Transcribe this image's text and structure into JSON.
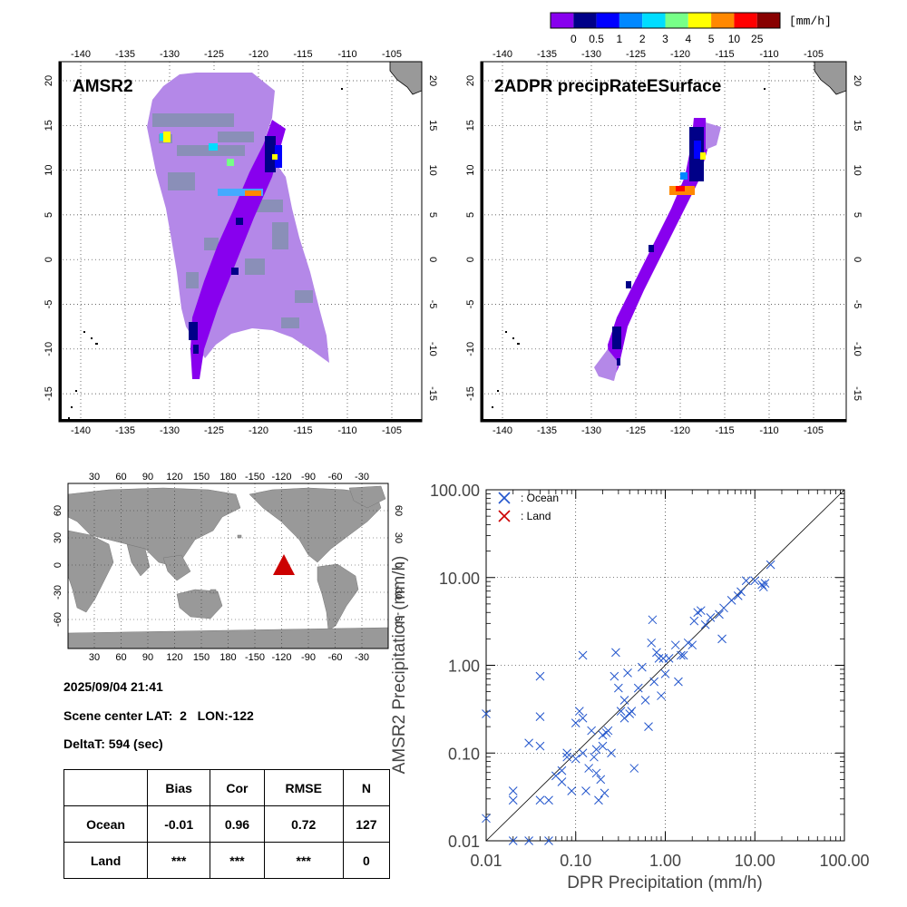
{
  "colorbar": {
    "unit": "[mm/h]",
    "ticks": [
      "0",
      "0.5",
      "1",
      "2",
      "3",
      "4",
      "5",
      "10",
      "25"
    ],
    "colors": [
      "#8800ee",
      "#000088",
      "#0000ff",
      "#0088ff",
      "#00ddff",
      "#77ff88",
      "#ffff00",
      "#ff8800",
      "#ff0000",
      "#880000"
    ]
  },
  "panels": {
    "amsr2": {
      "title": "AMSR2"
    },
    "dpr": {
      "title": "2ADPR precipRateESurface"
    },
    "lon_ticks": [
      "-140",
      "-135",
      "-130",
      "-125",
      "-120",
      "-115",
      "-110",
      "-105"
    ],
    "lat_ticks": [
      "20",
      "15",
      "10",
      "5",
      "0",
      "-5",
      "-10",
      "-15"
    ]
  },
  "world_map": {
    "lon_ticks": [
      "30",
      "60",
      "90",
      "120",
      "150",
      "180",
      "-150",
      "-120",
      "-90",
      "-60",
      "-30"
    ],
    "lat_ticks": [
      "60",
      "30",
      "0",
      "-30",
      "-60"
    ],
    "marker_color": "#cc0000"
  },
  "info": {
    "datetime": "2025/09/04 21:41",
    "scene_center": "Scene center LAT:  2   LON:-122",
    "delta_t": "DeltaT:  594 (sec)"
  },
  "stats_table": {
    "headers": [
      "Bias",
      "Cor",
      "RMSE",
      "N"
    ],
    "rows": [
      {
        "label": "Ocean",
        "values": [
          "-0.01",
          "0.96",
          "0.72",
          "127"
        ]
      },
      {
        "label": "Land",
        "values": [
          "***",
          "***",
          "***",
          "0"
        ]
      }
    ]
  },
  "chart_data": {
    "type": "scatter",
    "xlabel": "DPR Precipitation (mm/h)",
    "ylabel": "AMSR2 Precipitation (mm/h)",
    "xscale": "log",
    "yscale": "log",
    "xlim": [
      0.01,
      100
    ],
    "ylim": [
      0.01,
      100
    ],
    "tick_labels": [
      "0.01",
      "0.10",
      "1.00",
      "10.00",
      "100.00"
    ],
    "legend": {
      "placement": "top-left"
    },
    "series": [
      {
        "name": ": Ocean",
        "color": "#2255cc",
        "points": [
          [
            0.01,
            0.28
          ],
          [
            0.01,
            0.018
          ],
          [
            0.02,
            0.037
          ],
          [
            0.02,
            0.029
          ],
          [
            0.02,
            0.009
          ],
          [
            0.03,
            0.13
          ],
          [
            0.03,
            0.009
          ],
          [
            0.04,
            0.75
          ],
          [
            0.04,
            0.26
          ],
          [
            0.04,
            0.12
          ],
          [
            0.04,
            0.029
          ],
          [
            0.05,
            0.029
          ],
          [
            0.05,
            0.009
          ],
          [
            0.06,
            0.055
          ],
          [
            0.07,
            0.047
          ],
          [
            0.07,
            0.063
          ],
          [
            0.08,
            0.1
          ],
          [
            0.08,
            0.09
          ],
          [
            0.09,
            0.037
          ],
          [
            0.1,
            0.22
          ],
          [
            0.1,
            0.086
          ],
          [
            0.11,
            0.3
          ],
          [
            0.12,
            0.25
          ],
          [
            0.12,
            1.3
          ],
          [
            0.12,
            0.1
          ],
          [
            0.13,
            0.037
          ],
          [
            0.14,
            0.067
          ],
          [
            0.15,
            0.18
          ],
          [
            0.16,
            0.09
          ],
          [
            0.17,
            0.11
          ],
          [
            0.17,
            0.059
          ],
          [
            0.18,
            0.029
          ],
          [
            0.19,
            0.05
          ],
          [
            0.2,
            0.16
          ],
          [
            0.2,
            0.12
          ],
          [
            0.21,
            0.035
          ],
          [
            0.22,
            0.17
          ],
          [
            0.23,
            0.18
          ],
          [
            0.25,
            0.1
          ],
          [
            0.27,
            0.75
          ],
          [
            0.28,
            1.4
          ],
          [
            0.3,
            0.55
          ],
          [
            0.32,
            0.3
          ],
          [
            0.35,
            0.4
          ],
          [
            0.35,
            0.25
          ],
          [
            0.38,
            0.82
          ],
          [
            0.4,
            0.28
          ],
          [
            0.42,
            0.3
          ],
          [
            0.45,
            0.067
          ],
          [
            0.5,
            0.55
          ],
          [
            0.55,
            0.95
          ],
          [
            0.6,
            0.4
          ],
          [
            0.65,
            0.2
          ],
          [
            0.7,
            1.8
          ],
          [
            0.72,
            3.3
          ],
          [
            0.75,
            0.65
          ],
          [
            0.8,
            1.4
          ],
          [
            0.85,
            1.2
          ],
          [
            0.9,
            0.45
          ],
          [
            0.95,
            1.2
          ],
          [
            1.0,
            0.8
          ],
          [
            1.1,
            1.2
          ],
          [
            1.3,
            1.7
          ],
          [
            1.4,
            0.65
          ],
          [
            1.5,
            1.3
          ],
          [
            1.6,
            1.3
          ],
          [
            1.8,
            1.8
          ],
          [
            2.0,
            1.7
          ],
          [
            2.1,
            3.2
          ],
          [
            2.3,
            4.0
          ],
          [
            2.5,
            4.2
          ],
          [
            2.8,
            2.9
          ],
          [
            3.2,
            3.5
          ],
          [
            4.0,
            3.8
          ],
          [
            4.3,
            2.0
          ],
          [
            4.5,
            4.5
          ],
          [
            5.5,
            5.5
          ],
          [
            6.5,
            6.2
          ],
          [
            7.0,
            6.9
          ],
          [
            8.0,
            9.2
          ],
          [
            10.0,
            9.2
          ],
          [
            12.0,
            8.3
          ],
          [
            12.5,
            7.8
          ],
          [
            13.0,
            8.6
          ],
          [
            15.0,
            14.0
          ]
        ]
      },
      {
        "name": ": Land",
        "color": "#cc0000",
        "points": []
      }
    ]
  }
}
